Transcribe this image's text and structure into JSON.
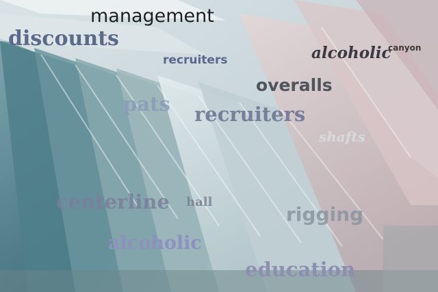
{
  "words": [
    {
      "text": "management",
      "color": "#1f1f24"
    },
    {
      "text": "discounts",
      "color": "#5a6a88"
    },
    {
      "text": "recruiters",
      "color": "#5c6790"
    },
    {
      "text": "alcoholic",
      "color": "#3a3a40"
    },
    {
      "text": "canyon",
      "color": "#3f3a38"
    },
    {
      "text": "overalls",
      "color": "#4f555a"
    },
    {
      "text": "pats",
      "color": "#8a9ab8"
    },
    {
      "text": "recruiters",
      "color": "#6a7090"
    },
    {
      "text": "shafts",
      "color": "#d8dde2"
    },
    {
      "text": "centerline",
      "color": "#7b7f9a"
    },
    {
      "text": "hall",
      "color": "#7a8090"
    },
    {
      "text": "rigging",
      "color": "#8a95a0"
    },
    {
      "text": "alcoholic",
      "color": "#8f90c0"
    },
    {
      "text": "education",
      "color": "#8c8fb0"
    }
  ]
}
